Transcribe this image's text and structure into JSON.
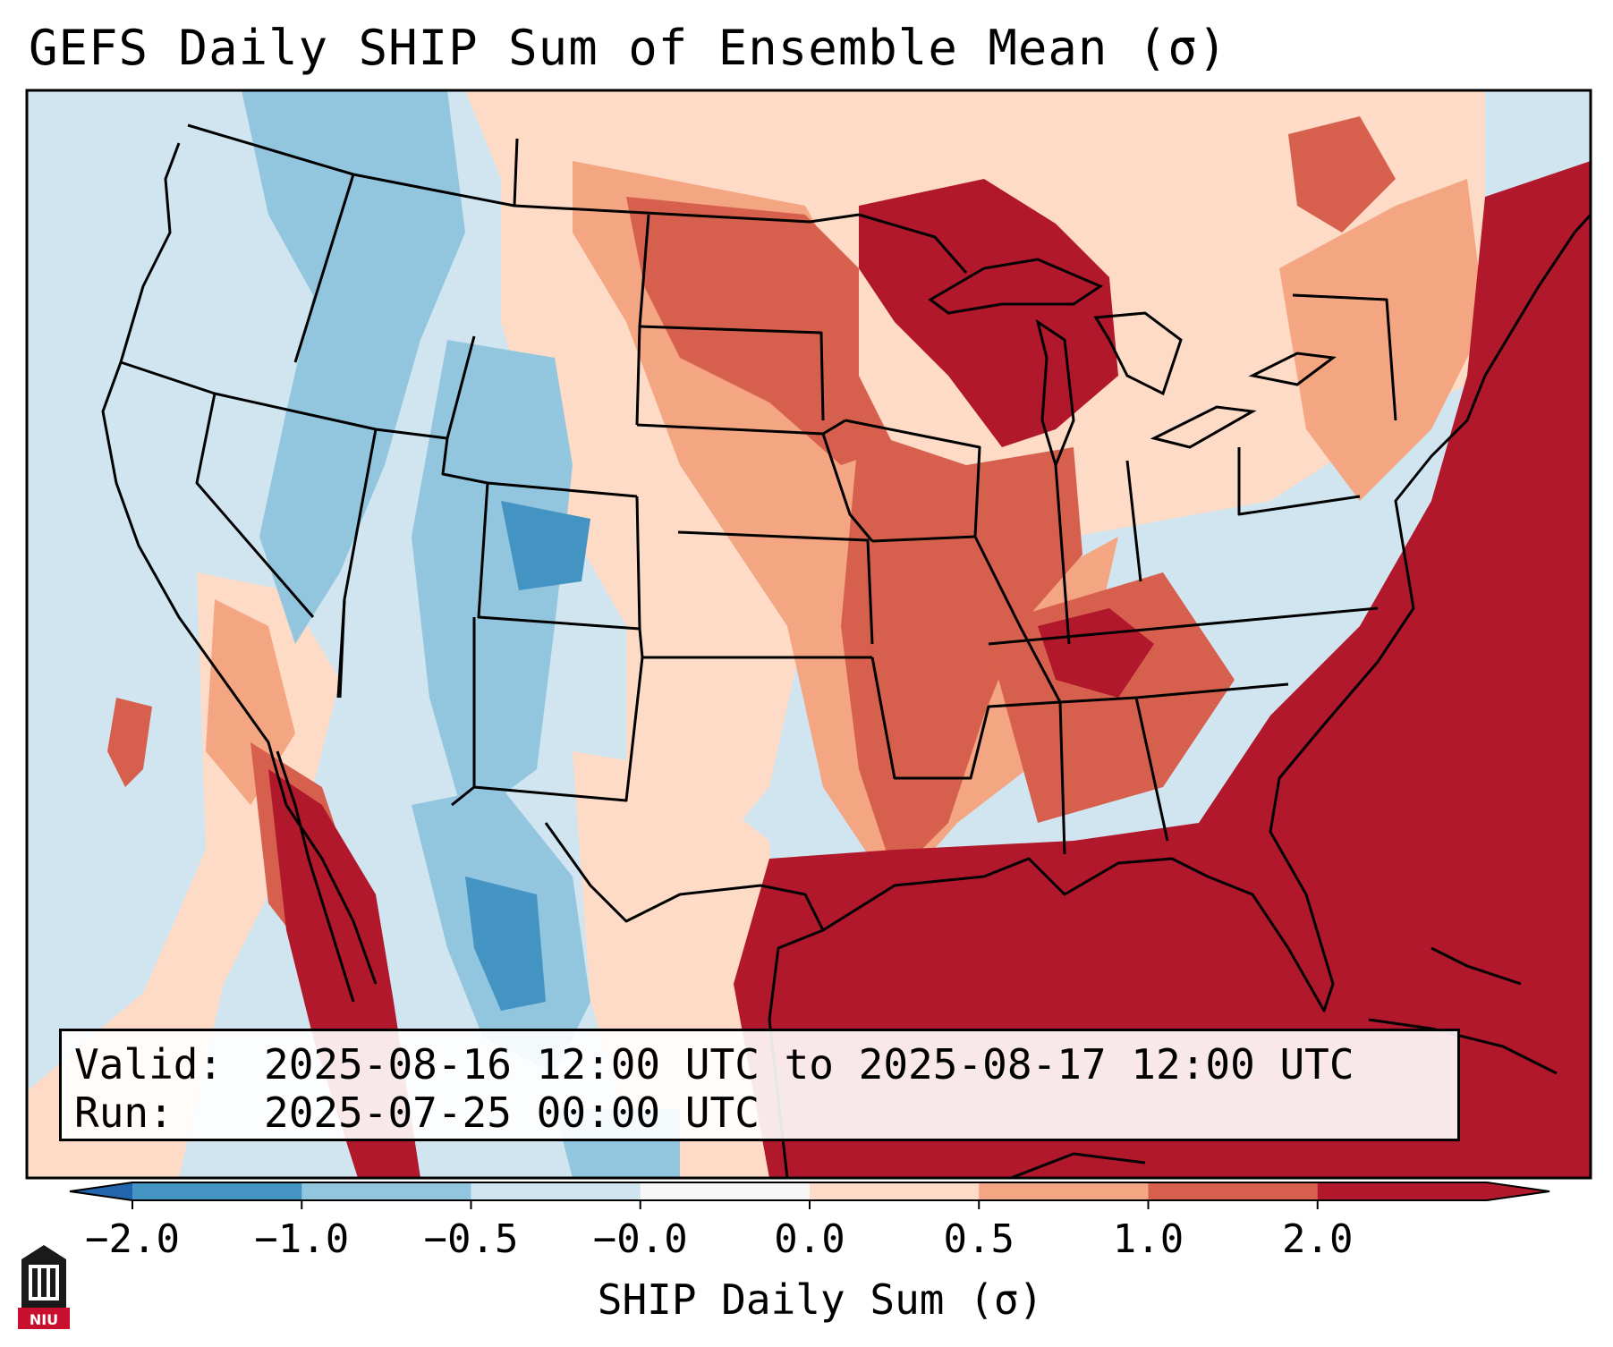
{
  "title": "GEFS Daily SHIP Sum of Ensemble Mean (σ)",
  "info": {
    "valid_key": "Valid:",
    "valid_value": "2025-08-16 12:00 UTC to 2025-08-17 12:00 UTC",
    "run_key": "Run:",
    "run_value": "2025-07-25 00:00 UTC"
  },
  "colorbar": {
    "label": "SHIP Daily Sum (σ)",
    "ticks": [
      "−2.0",
      "−1.0",
      "−0.5",
      "−0.0",
      "0.0",
      "0.5",
      "1.0",
      "2.0"
    ],
    "colors": [
      "#4393c3",
      "#92c5de",
      "#d1e5f0",
      "#f7f7f7",
      "#fddbc7",
      "#f4a582",
      "#d6604d",
      "#b2182b"
    ],
    "under_color": "#2166ac",
    "over_color": "#b2182b"
  },
  "map_fill_colors": {
    "neg_strong": "#4393c3",
    "neg_mid": "#92c5de",
    "neg_weak": "#d1e5f0",
    "pos_weak": "#fddbc7",
    "pos_mid": "#f4a582",
    "pos_strong": "#d6604d",
    "pos_max": "#b2182b"
  },
  "logo_text": "NIU"
}
